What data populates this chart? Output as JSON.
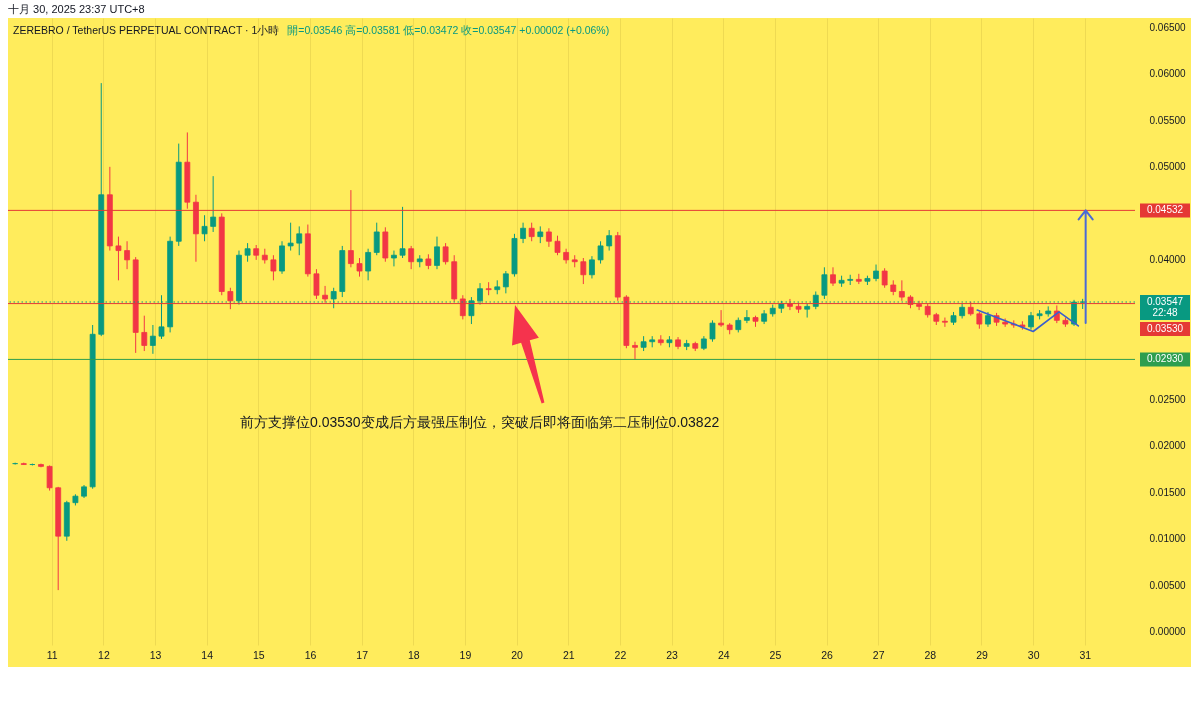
{
  "chart_data": {
    "type": "candlestick",
    "title": "ZEREBRO / TetherUS PERPETUAL CONTRACT · 1小時",
    "subtitle": "開=0.03546 高=0.03581 低=0.03472 收=0.03547 +0.00002 (+0.06%)",
    "annotations": [
      "十月 30, 2025 23:37 UTC+8",
      "前方支撑位0.03530变成后方最强压制位，突破后即将面临第二压制位0.03822"
    ],
    "x": [
      "2025-10-10T07:00",
      "2025-10-10T11:00",
      "2025-10-10T15:00",
      "2025-10-10T19:00",
      "2025-10-10T23:00",
      "2025-10-11T03:00",
      "2025-10-11T07:00",
      "2025-10-11T11:00",
      "2025-10-11T15:00",
      "2025-10-11T19:00",
      "2025-10-11T23:00",
      "2025-10-12T03:00",
      "2025-10-12T07:00",
      "2025-10-12T11:00",
      "2025-10-12T15:00",
      "2025-10-12T19:00",
      "2025-10-12T23:00",
      "2025-10-13T03:00",
      "2025-10-13T07:00",
      "2025-10-13T11:00",
      "2025-10-13T15:00",
      "2025-10-13T19:00",
      "2025-10-13T23:00",
      "2025-10-14T03:00",
      "2025-10-14T07:00",
      "2025-10-14T11:00",
      "2025-10-14T15:00",
      "2025-10-14T19:00",
      "2025-10-14T23:00",
      "2025-10-15T03:00",
      "2025-10-15T07:00",
      "2025-10-15T11:00",
      "2025-10-15T15:00",
      "2025-10-15T19:00",
      "2025-10-15T23:00",
      "2025-10-16T03:00",
      "2025-10-16T07:00",
      "2025-10-16T11:00",
      "2025-10-16T15:00",
      "2025-10-16T19:00",
      "2025-10-16T23:00",
      "2025-10-17T03:00",
      "2025-10-17T07:00",
      "2025-10-17T11:00",
      "2025-10-17T15:00",
      "2025-10-17T19:00",
      "2025-10-17T23:00",
      "2025-10-18T03:00",
      "2025-10-18T07:00",
      "2025-10-18T11:00",
      "2025-10-18T15:00",
      "2025-10-18T19:00",
      "2025-10-18T23:00",
      "2025-10-19T03:00",
      "2025-10-19T07:00",
      "2025-10-19T11:00",
      "2025-10-19T15:00",
      "2025-10-19T19:00",
      "2025-10-19T23:00",
      "2025-10-20T03:00",
      "2025-10-20T07:00",
      "2025-10-20T11:00",
      "2025-10-20T15:00",
      "2025-10-20T19:00",
      "2025-10-20T23:00",
      "2025-10-21T03:00",
      "2025-10-21T07:00",
      "2025-10-21T11:00",
      "2025-10-21T15:00",
      "2025-10-21T19:00",
      "2025-10-21T23:00",
      "2025-10-22T03:00",
      "2025-10-22T07:00",
      "2025-10-22T11:00",
      "2025-10-22T15:00",
      "2025-10-22T19:00",
      "2025-10-22T23:00",
      "2025-10-23T03:00",
      "2025-10-23T07:00",
      "2025-10-23T11:00",
      "2025-10-23T15:00",
      "2025-10-23T19:00",
      "2025-10-23T23:00",
      "2025-10-24T03:00",
      "2025-10-24T07:00",
      "2025-10-24T11:00",
      "2025-10-24T15:00",
      "2025-10-24T19:00",
      "2025-10-24T23:00",
      "2025-10-25T03:00",
      "2025-10-25T07:00",
      "2025-10-25T11:00",
      "2025-10-25T15:00",
      "2025-10-25T19:00",
      "2025-10-25T23:00",
      "2025-10-26T03:00",
      "2025-10-26T07:00",
      "2025-10-26T11:00",
      "2025-10-26T15:00",
      "2025-10-26T19:00",
      "2025-10-26T23:00",
      "2025-10-27T03:00",
      "2025-10-27T07:00",
      "2025-10-27T11:00",
      "2025-10-27T15:00",
      "2025-10-27T19:00",
      "2025-10-27T23:00",
      "2025-10-28T03:00",
      "2025-10-28T07:00",
      "2025-10-28T11:00",
      "2025-10-28T15:00",
      "2025-10-28T19:00",
      "2025-10-28T23:00",
      "2025-10-29T03:00",
      "2025-10-29T07:00",
      "2025-10-29T11:00",
      "2025-10-29T15:00",
      "2025-10-29T19:00",
      "2025-10-29T23:00",
      "2025-10-30T03:00",
      "2025-10-30T07:00",
      "2025-10-30T11:00",
      "2025-10-30T15:00",
      "2025-10-30T19:00",
      "2025-10-30T23:00"
    ],
    "ohlc": [
      [
        0.0181,
        0.0182,
        0.018,
        0.0181
      ],
      [
        0.0181,
        0.0182,
        0.018,
        0.018
      ],
      [
        0.018,
        0.0181,
        0.0179,
        0.018
      ],
      [
        0.018,
        0.0181,
        0.0177,
        0.0178
      ],
      [
        0.0178,
        0.0179,
        0.0152,
        0.0155
      ],
      [
        0.0155,
        0.0156,
        0.0045,
        0.0103
      ],
      [
        0.0103,
        0.0141,
        0.0098,
        0.0139
      ],
      [
        0.0139,
        0.0148,
        0.0136,
        0.0146
      ],
      [
        0.0146,
        0.0158,
        0.0144,
        0.0156
      ],
      [
        0.0156,
        0.033,
        0.0154,
        0.032
      ],
      [
        0.032,
        0.059,
        0.0318,
        0.047
      ],
      [
        0.047,
        0.05,
        0.041,
        0.0415
      ],
      [
        0.0415,
        0.0425,
        0.0378,
        0.041
      ],
      [
        0.041,
        0.042,
        0.039,
        0.04
      ],
      [
        0.04,
        0.0403,
        0.03,
        0.0322
      ],
      [
        0.0322,
        0.034,
        0.0302,
        0.0308
      ],
      [
        0.0308,
        0.033,
        0.0299,
        0.0318
      ],
      [
        0.0318,
        0.0362,
        0.0315,
        0.0328
      ],
      [
        0.0328,
        0.0425,
        0.0322,
        0.042
      ],
      [
        0.042,
        0.0525,
        0.0415,
        0.0505
      ],
      [
        0.0505,
        0.0537,
        0.0455,
        0.0462
      ],
      [
        0.0462,
        0.047,
        0.0398,
        0.0428
      ],
      [
        0.0428,
        0.0448,
        0.042,
        0.0436
      ],
      [
        0.0436,
        0.049,
        0.043,
        0.0446
      ],
      [
        0.0446,
        0.045,
        0.0362,
        0.0366
      ],
      [
        0.0366,
        0.037,
        0.0347,
        0.0356
      ],
      [
        0.0356,
        0.041,
        0.0352,
        0.0405
      ],
      [
        0.0405,
        0.0418,
        0.0398,
        0.0412
      ],
      [
        0.0412,
        0.0416,
        0.04,
        0.0405
      ],
      [
        0.0405,
        0.0412,
        0.0396,
        0.04
      ],
      [
        0.04,
        0.0405,
        0.0378,
        0.0388
      ],
      [
        0.0388,
        0.042,
        0.0385,
        0.0415
      ],
      [
        0.0415,
        0.044,
        0.041,
        0.0418
      ],
      [
        0.0418,
        0.0436,
        0.0405,
        0.0428
      ],
      [
        0.0428,
        0.0438,
        0.0382,
        0.0385
      ],
      [
        0.0385,
        0.039,
        0.0358,
        0.0362
      ],
      [
        0.0362,
        0.0372,
        0.0354,
        0.0358
      ],
      [
        0.0358,
        0.037,
        0.0348,
        0.0366
      ],
      [
        0.0366,
        0.0415,
        0.036,
        0.041
      ],
      [
        0.041,
        0.0475,
        0.0392,
        0.0396
      ],
      [
        0.0396,
        0.0402,
        0.0382,
        0.0388
      ],
      [
        0.0388,
        0.0412,
        0.0378,
        0.0408
      ],
      [
        0.0408,
        0.044,
        0.0405,
        0.043
      ],
      [
        0.043,
        0.0435,
        0.0398,
        0.0402
      ],
      [
        0.0402,
        0.041,
        0.0393,
        0.0405
      ],
      [
        0.0405,
        0.0457,
        0.0402,
        0.0412
      ],
      [
        0.0412,
        0.0415,
        0.039,
        0.0398
      ],
      [
        0.0398,
        0.0405,
        0.0392,
        0.0401
      ],
      [
        0.0401,
        0.0406,
        0.039,
        0.0394
      ],
      [
        0.0394,
        0.0425,
        0.039,
        0.0414
      ],
      [
        0.0414,
        0.0418,
        0.0395,
        0.0398
      ],
      [
        0.0398,
        0.0405,
        0.0355,
        0.0358
      ],
      [
        0.0358,
        0.0362,
        0.0336,
        0.034
      ],
      [
        0.034,
        0.036,
        0.0331,
        0.0356
      ],
      [
        0.0356,
        0.0375,
        0.0352,
        0.0369
      ],
      [
        0.0369,
        0.0376,
        0.0362,
        0.0368
      ],
      [
        0.0368,
        0.0378,
        0.0363,
        0.0371
      ],
      [
        0.0371,
        0.0388,
        0.0364,
        0.0385
      ],
      [
        0.0385,
        0.0428,
        0.0382,
        0.0423
      ],
      [
        0.0423,
        0.044,
        0.0418,
        0.0434
      ],
      [
        0.0434,
        0.044,
        0.042,
        0.0425
      ],
      [
        0.0425,
        0.0436,
        0.0418,
        0.043
      ],
      [
        0.043,
        0.0434,
        0.0414,
        0.042
      ],
      [
        0.042,
        0.0426,
        0.0405,
        0.0408
      ],
      [
        0.0408,
        0.0412,
        0.0396,
        0.04
      ],
      [
        0.04,
        0.0405,
        0.0392,
        0.0398
      ],
      [
        0.0398,
        0.0402,
        0.0374,
        0.0384
      ],
      [
        0.0384,
        0.0404,
        0.038,
        0.04
      ],
      [
        0.04,
        0.042,
        0.0396,
        0.0415
      ],
      [
        0.0415,
        0.0432,
        0.041,
        0.0426
      ],
      [
        0.0426,
        0.043,
        0.0356,
        0.036
      ],
      [
        0.036,
        0.0362,
        0.0305,
        0.0308
      ],
      [
        0.0308,
        0.0312,
        0.0293,
        0.0306
      ],
      [
        0.0306,
        0.0318,
        0.0302,
        0.0312
      ],
      [
        0.0312,
        0.0318,
        0.0306,
        0.0314
      ],
      [
        0.0314,
        0.0319,
        0.0308,
        0.0311
      ],
      [
        0.0311,
        0.0318,
        0.0306,
        0.0314
      ],
      [
        0.0314,
        0.0317,
        0.0304,
        0.0307
      ],
      [
        0.0307,
        0.0314,
        0.0303,
        0.031
      ],
      [
        0.031,
        0.0312,
        0.0302,
        0.0305
      ],
      [
        0.0305,
        0.0318,
        0.0303,
        0.0315
      ],
      [
        0.0315,
        0.0335,
        0.0312,
        0.0332
      ],
      [
        0.0332,
        0.0346,
        0.0328,
        0.033
      ],
      [
        0.033,
        0.0332,
        0.032,
        0.0325
      ],
      [
        0.0325,
        0.0338,
        0.0322,
        0.0335
      ],
      [
        0.0335,
        0.0346,
        0.0332,
        0.0338
      ],
      [
        0.0338,
        0.034,
        0.0328,
        0.0334
      ],
      [
        0.0334,
        0.0346,
        0.0331,
        0.0342
      ],
      [
        0.0342,
        0.0352,
        0.0339,
        0.0348
      ],
      [
        0.0348,
        0.0356,
        0.0343,
        0.0353
      ],
      [
        0.0353,
        0.0358,
        0.0346,
        0.035
      ],
      [
        0.035,
        0.0354,
        0.0343,
        0.0347
      ],
      [
        0.0347,
        0.0353,
        0.0338,
        0.035
      ],
      [
        0.035,
        0.0366,
        0.0347,
        0.0362
      ],
      [
        0.0362,
        0.0392,
        0.0358,
        0.0384
      ],
      [
        0.0384,
        0.0392,
        0.0372,
        0.0375
      ],
      [
        0.0375,
        0.0383,
        0.0371,
        0.0378
      ],
      [
        0.0378,
        0.0384,
        0.0373,
        0.0379
      ],
      [
        0.0379,
        0.0385,
        0.0374,
        0.0377
      ],
      [
        0.0377,
        0.0383,
        0.0373,
        0.038
      ],
      [
        0.038,
        0.0395,
        0.0377,
        0.0388
      ],
      [
        0.0388,
        0.0391,
        0.037,
        0.0373
      ],
      [
        0.0373,
        0.0378,
        0.0362,
        0.0366
      ],
      [
        0.0366,
        0.0378,
        0.0356,
        0.036
      ],
      [
        0.036,
        0.0362,
        0.0348,
        0.0352
      ],
      [
        0.0352,
        0.0356,
        0.0346,
        0.035
      ],
      [
        0.035,
        0.0353,
        0.0338,
        0.0341
      ],
      [
        0.0341,
        0.0343,
        0.033,
        0.0334
      ],
      [
        0.0334,
        0.0338,
        0.0328,
        0.0333
      ],
      [
        0.0333,
        0.0344,
        0.033,
        0.034
      ],
      [
        0.034,
        0.0353,
        0.0337,
        0.0349
      ],
      [
        0.0349,
        0.0355,
        0.034,
        0.0342
      ],
      [
        0.0342,
        0.0344,
        0.0326,
        0.0331
      ],
      [
        0.0331,
        0.0344,
        0.0328,
        0.034
      ],
      [
        0.034,
        0.0343,
        0.0329,
        0.0333
      ],
      [
        0.0333,
        0.0337,
        0.0328,
        0.0331
      ],
      [
        0.0331,
        0.0335,
        0.0327,
        0.033
      ],
      [
        0.033,
        0.0334,
        0.0325,
        0.0328
      ],
      [
        0.0328,
        0.0344,
        0.0325,
        0.034
      ],
      [
        0.034,
        0.0346,
        0.0336,
        0.0342
      ],
      [
        0.0342,
        0.035,
        0.0339,
        0.0345
      ],
      [
        0.0345,
        0.0351,
        0.0332,
        0.0335
      ],
      [
        0.0335,
        0.0338,
        0.0328,
        0.0331
      ],
      [
        0.0331,
        0.0357,
        0.0329,
        0.03546
      ],
      [
        0.03546,
        0.03581,
        0.03472,
        0.03547
      ]
    ],
    "colors": [
      "#089981",
      "#f23645",
      "#089981",
      "#f23645",
      "#f23645",
      "#f23645",
      "#089981",
      "#089981",
      "#089981",
      "#089981",
      "#089981",
      "#f23645",
      "#f23645",
      "#f23645",
      "#f23645",
      "#f23645",
      "#089981",
      "#089981",
      "#089981",
      "#089981",
      "#f23645",
      "#f23645",
      "#089981",
      "#089981",
      "#f23645",
      "#f23645",
      "#089981",
      "#089981",
      "#f23645",
      "#f23645",
      "#f23645",
      "#089981",
      "#089981",
      "#089981",
      "#f23645",
      "#f23645",
      "#f23645",
      "#089981",
      "#089981",
      "#f23645",
      "#f23645",
      "#089981",
      "#089981",
      "#f23645",
      "#089981",
      "#089981",
      "#f23645",
      "#089981",
      "#f23645",
      "#089981",
      "#f23645",
      "#f23645",
      "#f23645",
      "#089981",
      "#089981",
      "#f23645",
      "#089981",
      "#089981",
      "#089981",
      "#089981",
      "#f23645",
      "#089981",
      "#f23645",
      "#f23645",
      "#f23645",
      "#f23645",
      "#f23645",
      "#089981",
      "#089981",
      "#089981",
      "#f23645",
      "#f23645",
      "#f23645",
      "#089981",
      "#089981",
      "#f23645",
      "#089981",
      "#f23645",
      "#089981",
      "#f23645",
      "#089981",
      "#089981",
      "#f23645",
      "#f23645",
      "#089981",
      "#089981",
      "#f23645",
      "#089981",
      "#089981",
      "#089981",
      "#f23645",
      "#f23645",
      "#089981",
      "#089981",
      "#089981",
      "#f23645",
      "#089981",
      "#089981",
      "#f23645",
      "#089981",
      "#089981",
      "#f23645",
      "#f23645",
      "#f23645",
      "#f23645",
      "#f23645",
      "#f23645",
      "#f23645",
      "#f23645",
      "#089981",
      "#089981",
      "#f23645",
      "#f23645",
      "#089981",
      "#f23645",
      "#f23645",
      "#f23645",
      "#f23645",
      "#089981",
      "#089981",
      "#089981",
      "#f23645",
      "#f23645",
      "#089981",
      "#089981"
    ],
    "series": [
      {
        "type": "line",
        "color": "#3a5fcd",
        "x": [
          "2025-10-28T22:00",
          "2025-10-30T00:00",
          "2025-10-30T12:00",
          "2025-10-30T21:00"
        ],
        "values": [
          0.0346,
          0.0323,
          0.0344,
          0.0329
        ]
      }
    ],
    "ref_lines": [
      {
        "axis": "y",
        "value": 0.04532,
        "label": "0.04532",
        "color": "#e53935"
      },
      {
        "axis": "y",
        "value": 0.03547,
        "label": "0.03547\n22:48",
        "color": "#089981",
        "line_style": "dotted"
      },
      {
        "axis": "y",
        "value": 0.0353,
        "label": "0.03530",
        "color": "#e53935"
      },
      {
        "axis": "y",
        "value": 0.0293,
        "label": "0.02930",
        "color": "#2e9e4f"
      }
    ],
    "xlim": [
      "2025-10-10T06:00",
      "2025-10-31T21:00"
    ],
    "xticks": [
      {
        "value": "2025-10-11",
        "label": "11"
      },
      {
        "value": "2025-10-12",
        "label": "12"
      },
      {
        "value": "2025-10-13",
        "label": "13"
      },
      {
        "value": "2025-10-14",
        "label": "14"
      },
      {
        "value": "2025-10-15",
        "label": "15"
      },
      {
        "value": "2025-10-16",
        "label": "16"
      },
      {
        "value": "2025-10-17",
        "label": "17"
      },
      {
        "value": "2025-10-18",
        "label": "18"
      },
      {
        "value": "2025-10-19",
        "label": "19"
      },
      {
        "value": "2025-10-20",
        "label": "20"
      },
      {
        "value": "2025-10-21",
        "label": "21"
      },
      {
        "value": "2025-10-22",
        "label": "22"
      },
      {
        "value": "2025-10-23",
        "label": "23"
      },
      {
        "value": "2025-10-24",
        "label": "24"
      },
      {
        "value": "2025-10-25",
        "label": "25"
      },
      {
        "value": "2025-10-26",
        "label": "26"
      },
      {
        "value": "2025-10-27",
        "label": "27"
      },
      {
        "value": "2025-10-28",
        "label": "28"
      },
      {
        "value": "2025-10-29",
        "label": "29"
      },
      {
        "value": "2025-10-30",
        "label": "30"
      },
      {
        "value": "2025-10-31",
        "label": "31"
      }
    ],
    "ylim": [
      -0.0014,
      0.066
    ],
    "yticks": [
      {
        "value": 0,
        "label": "0.00000"
      },
      {
        "value": 0.005,
        "label": "0.00500"
      },
      {
        "value": 0.01,
        "label": "0.01000"
      },
      {
        "value": 0.015,
        "label": "0.01500"
      },
      {
        "value": 0.02,
        "label": "0.02000"
      },
      {
        "value": 0.025,
        "label": "0.02500"
      },
      {
        "value": 0.04,
        "label": "0.04000"
      },
      {
        "value": 0.05,
        "label": "0.05000"
      },
      {
        "value": 0.055,
        "label": "0.05500"
      },
      {
        "value": 0.06,
        "label": "0.06000"
      },
      {
        "value": 0.065,
        "label": "0.06500"
      }
    ],
    "grid": "x"
  }
}
